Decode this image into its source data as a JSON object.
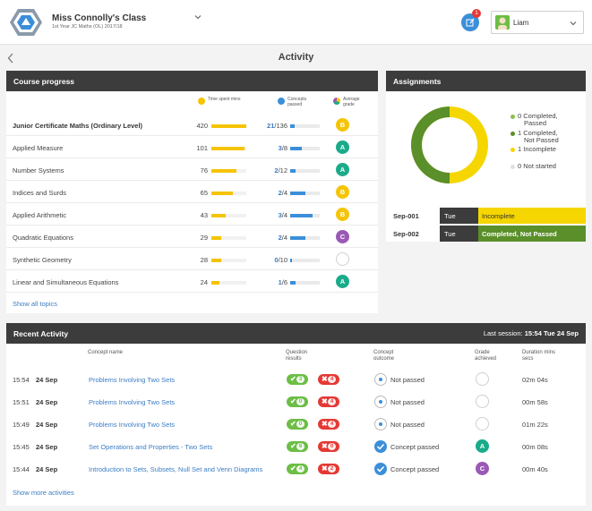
{
  "header": {
    "class_title": "Miss Connolly's Class",
    "class_subtitle": "1st Year JC Maths (OL) 2017/18",
    "notification_count": "1",
    "user_name": "Liam"
  },
  "page_title": "Activity",
  "course_progress": {
    "title": "Course progress",
    "col_time": "Time spent mins",
    "col_concepts": "Concepts passed",
    "col_grade": "Average grade",
    "show_all": "Show all topics",
    "topics": [
      {
        "name": "Junior Certificate Maths (Ordinary Level)",
        "time": "420",
        "time_frac": 1.0,
        "passed": "21",
        "total": "/136",
        "frac": 0.15,
        "grade": "B",
        "grade_color": "#f5c400"
      },
      {
        "name": "Applied Measure",
        "time": "101",
        "time_frac": 0.95,
        "passed": "3",
        "total": "/8",
        "frac": 0.38,
        "grade": "A",
        "grade_color": "#1aab8a"
      },
      {
        "name": "Number Systems",
        "time": "76",
        "time_frac": 0.72,
        "passed": "2",
        "total": "/12",
        "frac": 0.17,
        "grade": "A",
        "grade_color": "#1aab8a"
      },
      {
        "name": "Indices and Surds",
        "time": "65",
        "time_frac": 0.62,
        "passed": "2",
        "total": "/4",
        "frac": 0.5,
        "grade": "B",
        "grade_color": "#f5c400"
      },
      {
        "name": "Applied Arithmetic",
        "time": "43",
        "time_frac": 0.42,
        "passed": "3",
        "total": "/4",
        "frac": 0.75,
        "grade": "B",
        "grade_color": "#f5c400"
      },
      {
        "name": "Quadratic Equations",
        "time": "29",
        "time_frac": 0.28,
        "passed": "2",
        "total": "/4",
        "frac": 0.5,
        "grade": "C",
        "grade_color": "#9b59b6"
      },
      {
        "name": "Synthetic Geometry",
        "time": "28",
        "time_frac": 0.27,
        "passed": "0",
        "total": "/10",
        "frac": 0.05,
        "grade": "",
        "grade_color": ""
      },
      {
        "name": "Linear and Simultaneous Equations",
        "time": "24",
        "time_frac": 0.23,
        "passed": "1",
        "total": "/6",
        "frac": 0.17,
        "grade": "A",
        "grade_color": "#1aab8a"
      }
    ]
  },
  "assignments": {
    "title": "Assignments",
    "legend": [
      {
        "count": "0",
        "label_1": "Completed,",
        "label_2": "Passed",
        "color": "#8bc34a"
      },
      {
        "count": "1",
        "label_1": "Completed,",
        "label_2": "Not Passed",
        "color": "#5a8f29"
      },
      {
        "count": "1",
        "label_1": "Incomplete",
        "label_2": "",
        "color": "#f5d600"
      },
      {
        "count": "0",
        "label_1": "Not started",
        "label_2": "",
        "color": "#e0e0e0"
      }
    ],
    "donut": {
      "not_passed": 1,
      "incomplete": 1
    },
    "rows": [
      {
        "code": "Sep-001",
        "day": "Tue",
        "status": "Incomplete",
        "bg": "#f5d600",
        "fg": "#333"
      },
      {
        "code": "Sep-002",
        "day": "Tue",
        "status": "Completed, Not Passed",
        "bg": "#5a8f29",
        "fg": "#fff"
      }
    ]
  },
  "recent_activity": {
    "title": "Recent Activity",
    "last_session_label": "Last session:",
    "last_session_value": "15:54 Tue 24 Sep",
    "col_concept": "Concept name",
    "col_results": "Question results",
    "col_outcome": "Concept outcome",
    "col_grade": "Grade achieved",
    "col_duration": "Duration mins secs",
    "show_more": "Show more activities",
    "rows": [
      {
        "time": "15:54",
        "date": "24 Sep",
        "concept": "Problems Involving Two Sets",
        "correct": "3",
        "wrong": "4",
        "outcome": "Not passed",
        "passed": false,
        "grade": "",
        "grade_color": "",
        "duration": "02m 04s"
      },
      {
        "time": "15:51",
        "date": "24 Sep",
        "concept": "Problems Involving Two Sets",
        "correct": "0",
        "wrong": "4",
        "outcome": "Not passed",
        "passed": false,
        "grade": "",
        "grade_color": "",
        "duration": "00m 58s"
      },
      {
        "time": "15:49",
        "date": "24 Sep",
        "concept": "Problems Involving Two Sets",
        "correct": "0",
        "wrong": "4",
        "outcome": "Not passed",
        "passed": false,
        "grade": "",
        "grade_color": "",
        "duration": "01m 22s"
      },
      {
        "time": "15:45",
        "date": "24 Sep",
        "concept": "Set Operations and Properties - Two Sets",
        "correct": "6",
        "wrong": "0",
        "outcome": "Concept passed",
        "passed": true,
        "grade": "A",
        "grade_color": "#1aab8a",
        "duration": "00m 08s"
      },
      {
        "time": "15:44",
        "date": "24 Sep",
        "concept": "Introduction to Sets, Subsets, Null Set and Venn Diagrams",
        "correct": "4",
        "wrong": "2",
        "outcome": "Concept passed",
        "passed": true,
        "grade": "C",
        "grade_color": "#9b59b6",
        "duration": "00m 40s"
      }
    ]
  }
}
